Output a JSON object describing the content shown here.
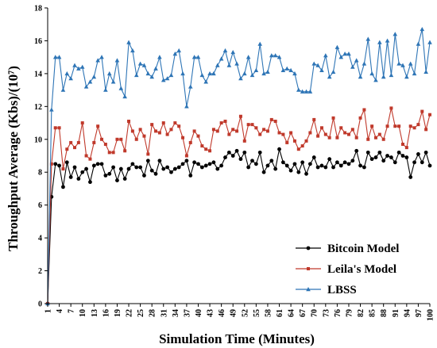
{
  "chart_data": {
    "type": "line",
    "xlabel": "Simulation Time (Minutes)",
    "ylabel": "Throughput Average (Kbs)/(10⁷)",
    "xlim": [
      1,
      100
    ],
    "ylim": [
      0,
      18
    ],
    "yticks": [
      0,
      2,
      4,
      6,
      8,
      10,
      12,
      14,
      16,
      18
    ],
    "xticks": [
      1,
      4,
      7,
      10,
      13,
      16,
      19,
      22,
      25,
      28,
      31,
      34,
      37,
      40,
      43,
      46,
      49,
      52,
      55,
      58,
      61,
      64,
      67,
      70,
      73,
      76,
      79,
      82,
      85,
      88,
      91,
      94,
      97,
      100
    ],
    "legend_position": "bottom-right",
    "grid": false,
    "series": [
      {
        "name": "Bitcoin Model",
        "color": "#000000",
        "marker": "circle",
        "values": [
          0,
          6.5,
          8.5,
          8.4,
          7.1,
          8.6,
          7.7,
          8.3,
          7.6,
          8.0,
          8.2,
          7.4,
          8.4,
          8.5,
          8.5,
          7.8,
          7.9,
          8.3,
          7.5,
          8.2,
          7.6,
          8.2,
          8.5,
          8.3,
          8.3,
          7.8,
          8.7,
          8.1,
          7.9,
          8.7,
          8.2,
          8.3,
          8.0,
          8.2,
          8.3,
          8.5,
          8.7,
          7.8,
          8.6,
          8.5,
          8.3,
          8.4,
          8.5,
          8.6,
          8.2,
          8.4,
          8.9,
          9.2,
          9.0,
          9.3,
          8.8,
          9.2,
          8.3,
          8.7,
          8.5,
          9.2,
          8.0,
          8.4,
          8.7,
          8.2,
          9.4,
          8.6,
          8.4,
          8.1,
          8.5,
          8.0,
          8.6,
          7.9,
          8.5,
          8.9,
          8.3,
          8.4,
          8.3,
          8.8,
          8.3,
          8.6,
          8.4,
          8.6,
          8.5,
          8.7,
          9.3,
          8.4,
          8.3,
          9.2,
          8.8,
          8.9,
          9.2,
          8.7,
          9.0,
          8.9,
          8.6,
          9.2,
          9.0,
          8.9,
          7.7,
          8.6,
          9.1,
          8.6,
          9.2,
          8.4
        ]
      },
      {
        "name": "Leila's Model",
        "color": "#c0392b",
        "marker": "square",
        "values": [
          0,
          8.5,
          10.7,
          10.7,
          8.2,
          9.4,
          9.8,
          9.5,
          9.8,
          11.0,
          9.0,
          8.8,
          9.8,
          10.8,
          10.0,
          9.7,
          9.2,
          9.2,
          10.0,
          10.0,
          9.3,
          11.1,
          10.5,
          10.0,
          10.6,
          10.2,
          9.1,
          10.9,
          10.5,
          10.4,
          11.0,
          10.3,
          10.6,
          11.0,
          10.8,
          10.1,
          9.0,
          9.8,
          10.5,
          10.2,
          9.6,
          9.4,
          9.3,
          10.6,
          10.5,
          11.0,
          11.1,
          10.3,
          10.6,
          10.5,
          11.4,
          9.9,
          10.9,
          10.9,
          10.7,
          10.3,
          10.6,
          10.5,
          11.2,
          11.1,
          10.4,
          10.3,
          9.8,
          10.4,
          9.9,
          9.4,
          9.6,
          9.9,
          10.4,
          11.2,
          10.2,
          10.7,
          10.3,
          10.1,
          11.3,
          10.1,
          10.7,
          10.4,
          10.3,
          10.6,
          10.1,
          11.3,
          11.8,
          10.0,
          10.8,
          10.1,
          10.3,
          10.0,
          10.8,
          11.9,
          10.8,
          10.8,
          9.7,
          9.5,
          10.8,
          10.7,
          10.9,
          11.7,
          10.6,
          11.5
        ]
      },
      {
        "name": "LBSS",
        "color": "#2e75b6",
        "marker": "triangle",
        "values": [
          0,
          11.8,
          15.0,
          15.0,
          13.0,
          14.0,
          13.7,
          14.5,
          14.3,
          14.4,
          13.2,
          13.5,
          13.8,
          14.8,
          15.0,
          13.0,
          14.0,
          13.5,
          14.8,
          13.1,
          12.6,
          15.9,
          15.4,
          13.9,
          14.6,
          14.5,
          14.0,
          13.8,
          14.3,
          15.0,
          13.6,
          13.7,
          13.9,
          15.2,
          15.4,
          14.0,
          12.0,
          13.2,
          15.0,
          15.0,
          13.9,
          13.5,
          14.0,
          14.0,
          14.5,
          14.9,
          15.4,
          14.5,
          15.3,
          14.6,
          13.7,
          14.0,
          15.0,
          13.9,
          14.2,
          15.8,
          14.0,
          14.1,
          15.1,
          15.1,
          15.0,
          14.2,
          14.3,
          14.2,
          14.0,
          13.0,
          12.9,
          12.9,
          12.9,
          14.6,
          14.5,
          14.2,
          15.1,
          13.8,
          14.1,
          15.6,
          15.0,
          15.2,
          15.2,
          14.4,
          14.8,
          13.8,
          14.6,
          16.1,
          14.0,
          13.6,
          15.9,
          13.8,
          16.0,
          13.9,
          16.4,
          14.6,
          14.5,
          13.8,
          14.6,
          14.0,
          15.8,
          16.7,
          14.1,
          15.9
        ]
      }
    ]
  }
}
